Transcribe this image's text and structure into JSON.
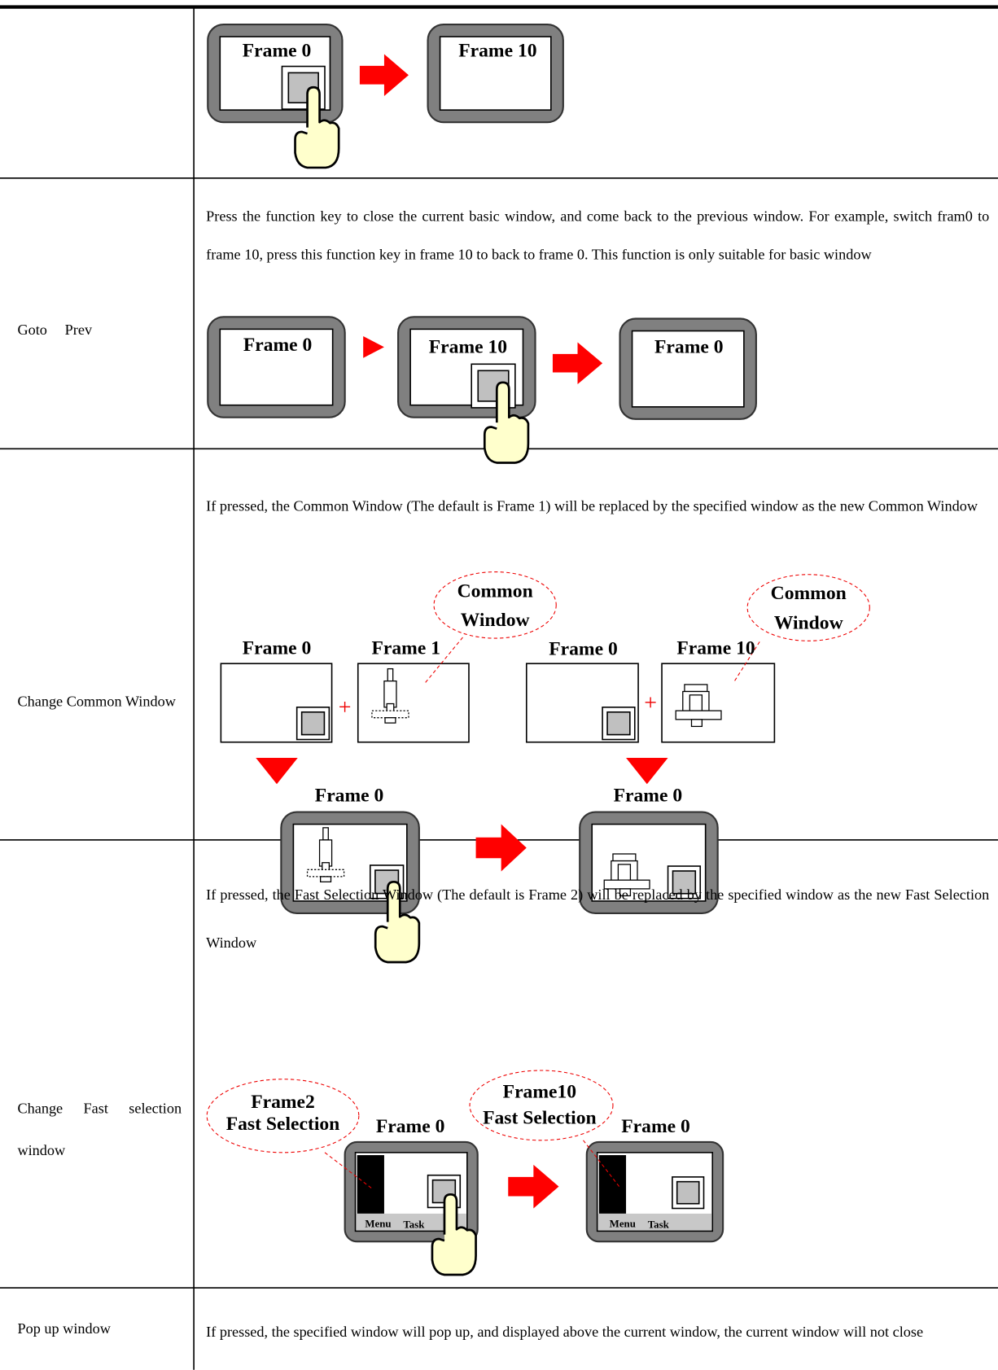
{
  "table": {
    "rows": [
      {
        "diagram": {
          "labels": [
            "Frame 0",
            "Frame 10"
          ]
        }
      },
      {
        "label": "Goto Prev",
        "description": "Press the function key to close the current basic window, and come back to the previous window. For example, switch fram0 to frame 10, press this function key in frame 10 to back to frame 0. This function is only suitable for basic window",
        "diagram": {
          "labels": [
            "Frame 0",
            "Frame 10",
            "Frame 0"
          ]
        }
      },
      {
        "label": "Change Common Window",
        "description": "If pressed, the Common Window (The default is Frame 1) will be replaced by the specified window as the new Common Window",
        "diagram": {
          "labels": [
            "Common",
            "Window",
            "Common",
            "Window",
            "Frame 0",
            "Frame 1",
            "Frame 0",
            "Frame 10",
            "+",
            "+",
            "Frame 0",
            "Frame 0"
          ]
        }
      },
      {
        "label": "Change Fast selection window",
        "description": "If pressed, the Fast Selection Window (The default is Frame 2) will be replaced by the specified window as the new Fast Selection Window",
        "diagram": {
          "labels": [
            "Frame2",
            "Fast Selection",
            "Frame 0",
            "Frame10",
            "Fast Selection",
            "Frame 0",
            "Menu",
            "Task",
            "Menu",
            "Task"
          ]
        }
      },
      {
        "label": "Pop up window",
        "description": "If pressed, the specified window will pop up, and displayed above the current window, the current window will not close"
      }
    ]
  }
}
